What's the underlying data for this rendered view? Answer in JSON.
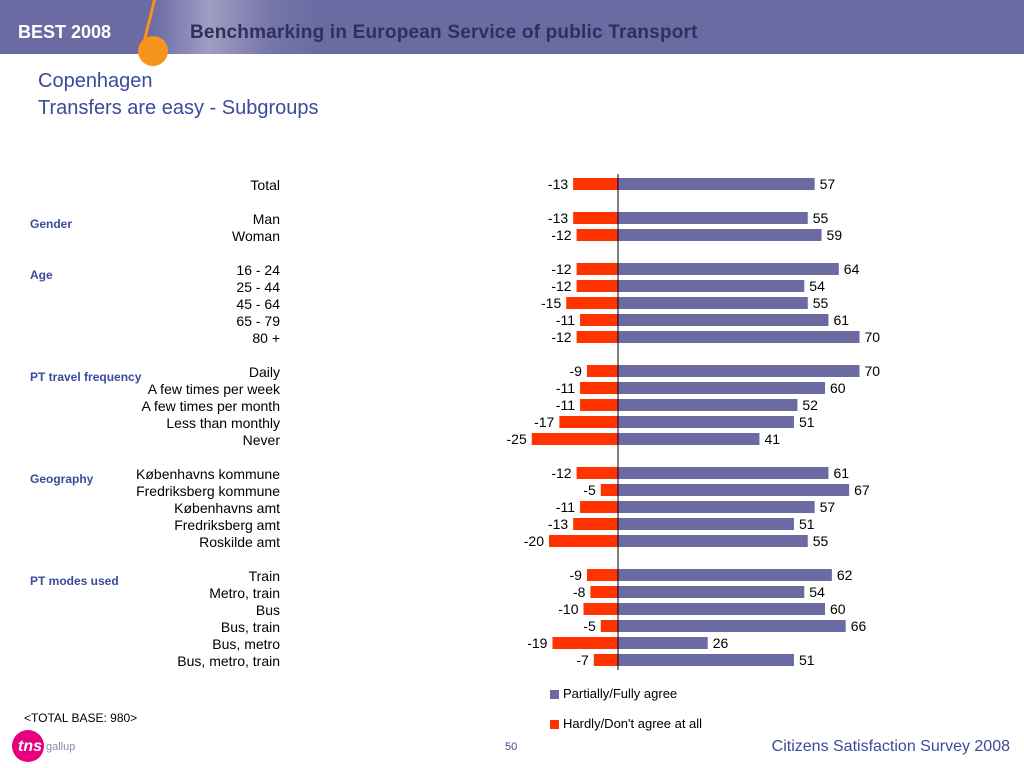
{
  "header": {
    "brand": "BEST 2008",
    "banner": "Benchmarking in European Service of public Transport"
  },
  "title": "Copenhagen",
  "subtitle": "Transfers are easy - Subgroups",
  "colors": {
    "agree": "#6b6aa3",
    "disagree": "#ff3300",
    "header_bg": "#6b6aa3",
    "accent": "#f7941d",
    "title": "#3c4a9c"
  },
  "chart_data": {
    "type": "bar",
    "orientation": "horizontal-diverging",
    "categories": [
      "Total",
      "Man",
      "Woman",
      "16 - 24",
      "25 - 44",
      "45 - 64",
      "65 - 79",
      "80 +",
      "Daily",
      "A few times per week",
      "A few times per month",
      "Less than monthly",
      "Never",
      "Københavns kommune",
      "Fredriksberg kommune",
      "Københavns amt",
      "Fredriksberg amt",
      "Roskilde amt",
      "Train",
      "Metro, train",
      "Bus",
      "Bus, train",
      "Bus, metro",
      "Bus, metro, train"
    ],
    "groups": [
      {
        "label": "",
        "rows": [
          "Total"
        ]
      },
      {
        "label": "Gender",
        "rows": [
          "Man",
          "Woman"
        ]
      },
      {
        "label": "Age",
        "rows": [
          "16 - 24",
          "25 - 44",
          "45 - 64",
          "65 - 79",
          "80 +"
        ]
      },
      {
        "label": "PT travel frequency",
        "rows": [
          "Daily",
          "A few times per week",
          "A few times per month",
          "Less than monthly",
          "Never"
        ]
      },
      {
        "label": "Geography",
        "rows": [
          "Københavns kommune",
          "Fredriksberg kommune",
          "Københavns amt",
          "Fredriksberg amt",
          "Roskilde amt"
        ]
      },
      {
        "label": "PT modes used",
        "rows": [
          "Train",
          "Metro, train",
          "Bus",
          "Bus, train",
          "Bus, metro",
          "Bus, metro, train"
        ]
      }
    ],
    "series": [
      {
        "name": "Partially/Fully agree",
        "values": [
          57,
          55,
          59,
          64,
          54,
          55,
          61,
          70,
          70,
          60,
          52,
          51,
          41,
          61,
          67,
          57,
          51,
          55,
          62,
          54,
          60,
          66,
          26,
          51
        ]
      },
      {
        "name": "Hardly/Don't agree at all",
        "values": [
          -13,
          -13,
          -12,
          -12,
          -12,
          -15,
          -11,
          -12,
          -9,
          -11,
          -11,
          -17,
          -25,
          -12,
          -5,
          -11,
          -13,
          -20,
          -9,
          -8,
          -10,
          -5,
          -19,
          -7
        ]
      }
    ],
    "legend": "bottom"
  },
  "footer": {
    "base_note": "<TOTAL BASE: 980>",
    "logo_tns": "tns",
    "logo_gallup": "gallup",
    "page_number": "50",
    "survey_name": "Citizens Satisfaction Survey 2008"
  }
}
